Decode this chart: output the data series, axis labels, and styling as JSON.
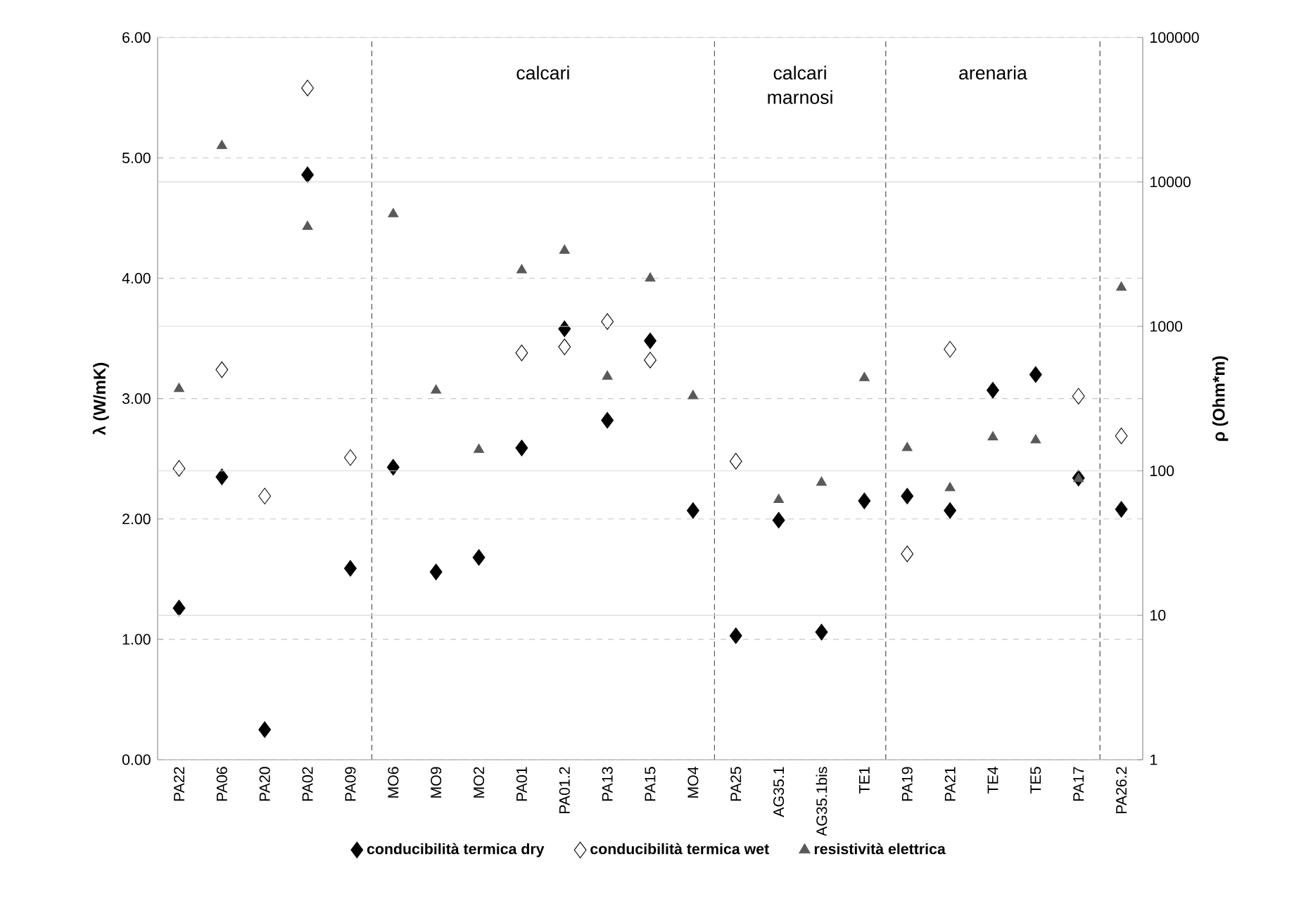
{
  "chart_data": {
    "type": "scatter",
    "ylabel": "λ (W/mK)",
    "y2label": "ρ (Ohm*m)",
    "categories": [
      "PA22",
      "PA06",
      "PA20",
      "PA02",
      "PA09",
      "MO6",
      "MO9",
      "MO2",
      "PA01",
      "PA01.2",
      "PA13",
      "PA15",
      "MO4",
      "PA25",
      "AG35.1",
      "AG35.1bis",
      "TE1",
      "PA19",
      "PA21",
      "TE4",
      "TE5",
      "PA17",
      "PA26.2"
    ],
    "series": [
      {
        "name": "conducibilità termica dry",
        "color": "#000000",
        "marker": "diamond",
        "values": [
          1.26,
          2.35,
          0.25,
          4.86,
          1.59,
          2.43,
          1.56,
          1.68,
          2.59,
          3.58,
          2.82,
          3.48,
          2.07,
          1.03,
          1.99,
          1.06,
          2.15,
          2.19,
          2.07,
          3.07,
          3.2,
          2.34,
          2.08
        ]
      },
      {
        "name": "conducibilità termica wet",
        "color": "#ffffff",
        "marker": "diamond",
        "values": [
          2.42,
          3.24,
          2.19,
          5.58,
          2.51,
          null,
          null,
          null,
          3.38,
          3.43,
          3.64,
          3.32,
          null,
          2.48,
          null,
          null,
          null,
          1.71,
          3.41,
          null,
          null,
          3.02,
          2.69
        ]
      },
      {
        "name": "resistività elettrica",
        "color": "#595959",
        "marker": "triangle",
        "axis": "y2",
        "values": [
          370,
          17800,
          null,
          4900,
          null,
          6000,
          360,
          140,
          2450,
          3350,
          450,
          2150,
          330,
          null,
          63,
          83,
          440,
          144,
          76,
          171,
          163,
          88,
          1860
        ]
      }
    ],
    "ylim": [
      0,
      6
    ],
    "yticks": [
      {
        "value": 0,
        "label": "0.00"
      },
      {
        "value": 1,
        "label": "1.00"
      },
      {
        "value": 2,
        "label": "2.00"
      },
      {
        "value": 3,
        "label": "3.00"
      },
      {
        "value": 4,
        "label": "4.00"
      },
      {
        "value": 5,
        "label": "5.00"
      },
      {
        "value": 6,
        "label": "6.00"
      }
    ],
    "y2lim": [
      1,
      100000
    ],
    "y2ticks": [
      1,
      10,
      100,
      1000,
      10000,
      100000
    ],
    "log": "y2",
    "annotations": [
      "calcari",
      "calcari marnosi",
      "arenaria"
    ],
    "grid": true,
    "legend": "bottom"
  }
}
